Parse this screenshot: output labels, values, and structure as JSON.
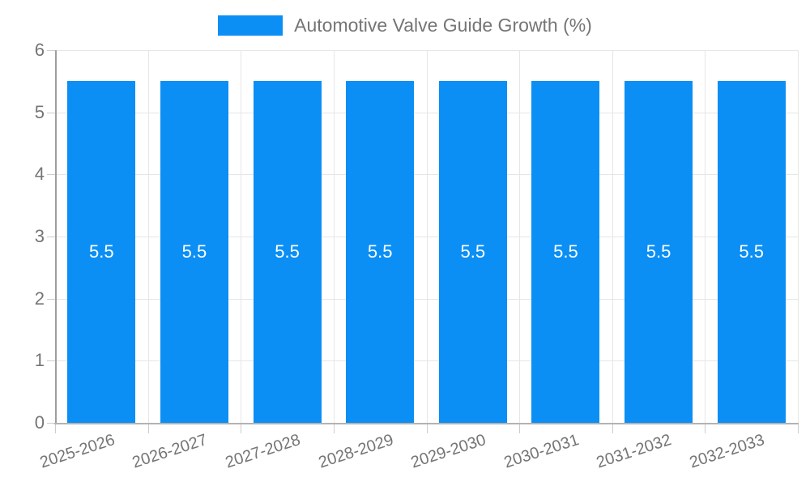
{
  "chart_data": {
    "type": "bar",
    "title": "Automotive Valve Guide Growth (%)",
    "categories": [
      "2025-2026",
      "2026-2027",
      "2027-2028",
      "2028-2029",
      "2029-2030",
      "2030-2031",
      "2031-2032",
      "2032-2033"
    ],
    "values": [
      5.5,
      5.5,
      5.5,
      5.5,
      5.5,
      5.5,
      5.5,
      5.5
    ],
    "bar_labels": [
      "5.5",
      "5.5",
      "5.5",
      "5.5",
      "5.5",
      "5.5",
      "5.5",
      "5.5"
    ],
    "xlabel": "",
    "ylabel": "",
    "ylim": [
      0,
      6
    ],
    "yticks": [
      0,
      1,
      2,
      3,
      4,
      5,
      6
    ],
    "grid": "on",
    "legend_position": "top-center",
    "colors": {
      "bar": "#0b8ff5",
      "bar_label": "#ffffff",
      "grid": "#e6e6e6",
      "axis": "#b3b3b3",
      "y_axis": "#9e9e9e",
      "tick": "#cccccc",
      "text": "#757575"
    }
  }
}
